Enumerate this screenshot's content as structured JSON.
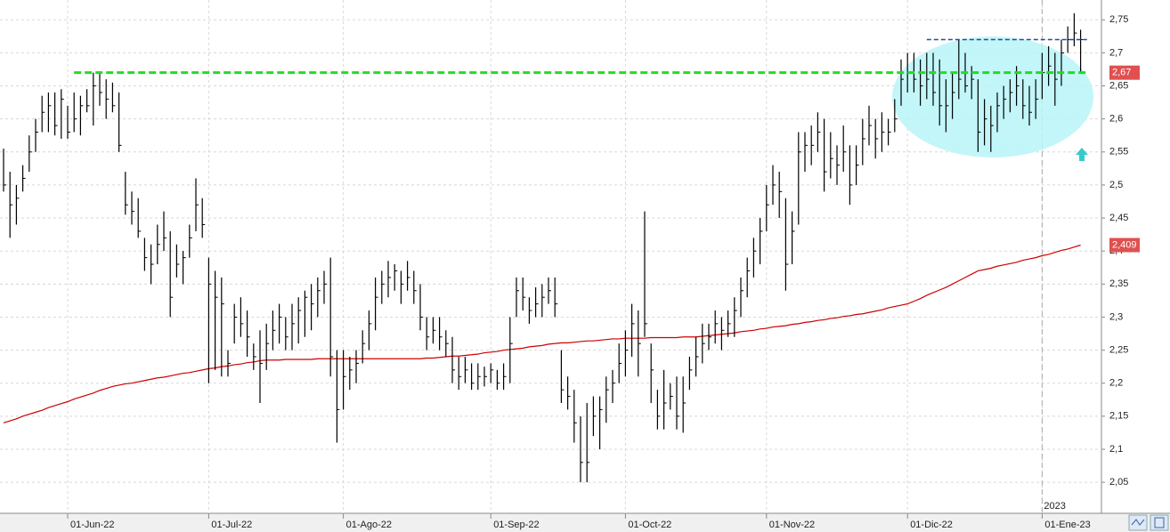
{
  "chart_data": {
    "type": "hlc",
    "bar_color": "#000000",
    "grid": true,
    "ylim": [
      2.003,
      2.78
    ],
    "yticks": [
      {
        "value": 2.05,
        "label": "2,05"
      },
      {
        "value": 2.1,
        "label": "2,1"
      },
      {
        "value": 2.15,
        "label": "2,15"
      },
      {
        "value": 2.2,
        "label": "2,2"
      },
      {
        "value": 2.25,
        "label": "2,25"
      },
      {
        "value": 2.3,
        "label": "2,3"
      },
      {
        "value": 2.35,
        "label": "2,35"
      },
      {
        "value": 2.4,
        "label": "2,4"
      },
      {
        "value": 2.45,
        "label": "2,45"
      },
      {
        "value": 2.5,
        "label": "2,5"
      },
      {
        "value": 2.55,
        "label": "2,55"
      },
      {
        "value": 2.6,
        "label": "2,6"
      },
      {
        "value": 2.65,
        "label": "2,65"
      },
      {
        "value": 2.7,
        "label": "2,7"
      },
      {
        "value": 2.75,
        "label": "2,75"
      }
    ],
    "categories": [
      null,
      null,
      null,
      null,
      null,
      null,
      null,
      null,
      null,
      null,
      "01-Jun-22",
      null,
      null,
      null,
      null,
      null,
      null,
      null,
      null,
      null,
      null,
      null,
      null,
      null,
      null,
      null,
      null,
      null,
      null,
      null,
      null,
      null,
      "01-Jul-22",
      null,
      null,
      null,
      null,
      null,
      null,
      null,
      null,
      null,
      null,
      null,
      null,
      null,
      null,
      null,
      null,
      null,
      null,
      null,
      null,
      "01-Ago-22",
      null,
      null,
      null,
      null,
      null,
      null,
      null,
      null,
      null,
      null,
      null,
      null,
      null,
      null,
      null,
      null,
      null,
      null,
      null,
      null,
      null,
      null,
      "01-Sep-22",
      null,
      null,
      null,
      null,
      null,
      null,
      null,
      null,
      null,
      null,
      null,
      null,
      null,
      null,
      null,
      null,
      null,
      null,
      null,
      null,
      "01-Oct-22",
      null,
      null,
      null,
      null,
      null,
      null,
      null,
      null,
      null,
      null,
      null,
      null,
      null,
      null,
      null,
      null,
      null,
      null,
      null,
      null,
      null,
      "01-Nov-22",
      null,
      null,
      null,
      null,
      null,
      null,
      null,
      null,
      null,
      null,
      null,
      null,
      null,
      null,
      null,
      null,
      null,
      null,
      null,
      null,
      null,
      "01-Dic-22",
      null,
      null,
      null,
      null,
      null,
      null,
      null,
      null,
      null,
      null,
      null,
      null,
      null,
      null,
      null,
      null,
      null,
      null,
      null,
      null,
      "01-Ene-23",
      null,
      null,
      null,
      null,
      null,
      null
    ],
    "high": [
      2.555,
      2.52,
      2.5,
      2.53,
      2.575,
      2.6,
      2.635,
      2.64,
      2.64,
      2.645,
      2.62,
      2.64,
      2.635,
      2.645,
      2.67,
      2.67,
      2.66,
      2.655,
      2.64,
      2.52,
      2.49,
      2.48,
      2.42,
      2.41,
      2.44,
      2.46,
      2.43,
      2.41,
      2.4,
      2.44,
      2.51,
      2.48,
      2.39,
      2.37,
      2.36,
      2.25,
      2.32,
      2.33,
      2.31,
      2.26,
      2.28,
      2.29,
      2.31,
      2.32,
      2.3,
      2.32,
      2.33,
      2.34,
      2.35,
      2.36,
      2.37,
      2.39,
      2.25,
      2.25,
      2.24,
      2.25,
      2.28,
      2.31,
      2.36,
      2.37,
      2.385,
      2.38,
      2.37,
      2.385,
      2.37,
      2.35,
      2.3,
      2.3,
      2.3,
      2.28,
      2.27,
      2.24,
      2.24,
      2.23,
      2.23,
      2.225,
      2.23,
      2.22,
      2.23,
      2.3,
      2.36,
      2.36,
      2.33,
      2.345,
      2.35,
      2.36,
      2.36,
      2.25,
      2.21,
      2.19,
      2.15,
      2.17,
      2.18,
      2.18,
      2.21,
      2.22,
      2.26,
      2.28,
      2.32,
      2.31,
      2.46,
      2.26,
      2.19,
      2.22,
      2.2,
      2.21,
      2.21,
      2.24,
      2.27,
      2.29,
      2.29,
      2.31,
      2.3,
      2.31,
      2.33,
      2.36,
      2.39,
      2.42,
      2.45,
      2.5,
      2.53,
      2.52,
      2.48,
      2.46,
      2.58,
      2.58,
      2.59,
      2.61,
      2.6,
      2.58,
      2.56,
      2.59,
      2.56,
      2.56,
      2.6,
      2.62,
      2.6,
      2.61,
      2.6,
      2.63,
      2.69,
      2.7,
      2.7,
      2.69,
      2.7,
      2.7,
      2.69,
      2.66,
      2.67,
      2.72,
      2.7,
      2.68,
      2.66,
      2.63,
      2.62,
      2.64,
      2.65,
      2.66,
      2.68,
      2.66,
      2.65,
      2.66,
      2.7,
      2.71,
      2.7,
      2.72,
      2.74,
      2.76,
      2.735
    ],
    "low": [
      2.49,
      2.42,
      2.44,
      2.49,
      2.52,
      2.55,
      2.58,
      2.58,
      2.575,
      2.57,
      2.57,
      2.58,
      2.575,
      2.61,
      2.59,
      2.62,
      2.6,
      2.61,
      2.55,
      2.455,
      2.44,
      2.42,
      2.37,
      2.35,
      2.38,
      2.4,
      2.3,
      2.36,
      2.35,
      2.39,
      2.43,
      2.42,
      2.2,
      2.22,
      2.21,
      2.21,
      2.26,
      2.27,
      2.24,
      2.22,
      2.17,
      2.22,
      2.25,
      2.26,
      2.25,
      2.25,
      2.26,
      2.27,
      2.28,
      2.3,
      2.32,
      2.21,
      2.11,
      2.16,
      2.19,
      2.2,
      2.23,
      2.25,
      2.28,
      2.32,
      2.33,
      2.34,
      2.32,
      2.34,
      2.32,
      2.28,
      2.25,
      2.26,
      2.25,
      2.24,
      2.2,
      2.19,
      2.2,
      2.19,
      2.19,
      2.195,
      2.2,
      2.19,
      2.19,
      2.2,
      2.3,
      2.31,
      2.29,
      2.3,
      2.3,
      2.32,
      2.3,
      2.17,
      2.16,
      2.11,
      2.05,
      2.05,
      2.12,
      2.1,
      2.14,
      2.17,
      2.2,
      2.21,
      2.24,
      2.21,
      2.27,
      2.17,
      2.13,
      2.13,
      2.16,
      2.13,
      2.125,
      2.19,
      2.21,
      2.23,
      2.25,
      2.26,
      2.25,
      2.27,
      2.27,
      2.3,
      2.33,
      2.36,
      2.38,
      2.43,
      2.47,
      2.45,
      2.34,
      2.38,
      2.44,
      2.52,
      2.53,
      2.55,
      2.49,
      2.51,
      2.5,
      2.52,
      2.47,
      2.5,
      2.53,
      2.56,
      2.54,
      2.55,
      2.56,
      2.58,
      2.62,
      2.64,
      2.64,
      2.62,
      2.63,
      2.62,
      2.59,
      2.58,
      2.6,
      2.63,
      2.64,
      2.63,
      2.55,
      2.56,
      2.55,
      2.58,
      2.6,
      2.61,
      2.62,
      2.6,
      2.59,
      2.6,
      2.63,
      2.65,
      2.62,
      2.65,
      2.7,
      2.71,
      2.67
    ],
    "close": [
      2.5,
      2.47,
      2.48,
      2.51,
      2.55,
      2.58,
      2.61,
      2.62,
      2.59,
      2.63,
      2.58,
      2.6,
      2.62,
      2.62,
      2.65,
      2.64,
      2.63,
      2.62,
      2.56,
      2.47,
      2.46,
      2.43,
      2.39,
      2.38,
      2.41,
      2.42,
      2.33,
      2.38,
      2.39,
      2.42,
      2.47,
      2.44,
      2.35,
      2.33,
      2.32,
      2.23,
      2.3,
      2.29,
      2.27,
      2.24,
      2.23,
      2.26,
      2.28,
      2.3,
      2.27,
      2.29,
      2.31,
      2.33,
      2.32,
      2.34,
      2.35,
      2.24,
      2.16,
      2.21,
      2.22,
      2.23,
      2.26,
      2.29,
      2.33,
      2.35,
      2.36,
      2.37,
      2.35,
      2.36,
      2.34,
      2.3,
      2.27,
      2.28,
      2.27,
      2.26,
      2.22,
      2.21,
      2.22,
      2.2,
      2.21,
      2.21,
      2.22,
      2.2,
      2.21,
      2.26,
      2.34,
      2.33,
      2.31,
      2.32,
      2.33,
      2.34,
      2.32,
      2.19,
      2.18,
      2.14,
      2.08,
      2.08,
      2.15,
      2.16,
      2.19,
      2.2,
      2.23,
      2.25,
      2.29,
      2.26,
      2.29,
      2.22,
      2.15,
      2.17,
      2.18,
      2.15,
      2.17,
      2.22,
      2.24,
      2.26,
      2.27,
      2.29,
      2.28,
      2.29,
      2.31,
      2.34,
      2.37,
      2.4,
      2.43,
      2.47,
      2.5,
      2.49,
      2.38,
      2.43,
      2.55,
      2.56,
      2.56,
      2.58,
      2.52,
      2.54,
      2.53,
      2.55,
      2.5,
      2.53,
      2.57,
      2.59,
      2.57,
      2.58,
      2.58,
      2.6,
      2.66,
      2.67,
      2.66,
      2.65,
      2.66,
      2.64,
      2.62,
      2.62,
      2.64,
      2.66,
      2.65,
      2.66,
      2.58,
      2.6,
      2.59,
      2.62,
      2.63,
      2.64,
      2.65,
      2.62,
      2.61,
      2.63,
      2.67,
      2.68,
      2.66,
      2.7,
      2.72,
      2.73,
      2.72
    ],
    "moving_average": {
      "color": "#cc0000",
      "values": [
        2.14,
        2.143,
        2.146,
        2.15,
        2.153,
        2.156,
        2.159,
        2.163,
        2.166,
        2.169,
        2.172,
        2.176,
        2.179,
        2.182,
        2.185,
        2.189,
        2.192,
        2.195,
        2.197,
        2.199,
        2.2,
        2.202,
        2.204,
        2.206,
        2.208,
        2.209,
        2.211,
        2.213,
        2.215,
        2.216,
        2.218,
        2.22,
        2.222,
        2.223,
        2.225,
        2.226,
        2.228,
        2.229,
        2.231,
        2.232,
        2.234,
        2.235,
        2.235,
        2.235,
        2.236,
        2.236,
        2.236,
        2.236,
        2.236,
        2.237,
        2.237,
        2.237,
        2.237,
        2.237,
        2.237,
        2.237,
        2.237,
        2.237,
        2.237,
        2.237,
        2.237,
        2.237,
        2.237,
        2.237,
        2.237,
        2.237,
        2.238,
        2.238,
        2.239,
        2.24,
        2.241,
        2.241,
        2.242,
        2.243,
        2.244,
        2.246,
        2.247,
        2.248,
        2.25,
        2.251,
        2.252,
        2.253,
        2.255,
        2.256,
        2.257,
        2.259,
        2.26,
        2.261,
        2.261,
        2.262,
        2.263,
        2.264,
        2.264,
        2.265,
        2.266,
        2.267,
        2.267,
        2.268,
        2.268,
        2.268,
        2.268,
        2.269,
        2.269,
        2.269,
        2.269,
        2.269,
        2.27,
        2.27,
        2.27,
        2.271,
        2.272,
        2.273,
        2.274,
        2.275,
        2.276,
        2.278,
        2.279,
        2.28,
        2.282,
        2.283,
        2.285,
        2.286,
        2.287,
        2.289,
        2.29,
        2.292,
        2.293,
        2.295,
        2.296,
        2.298,
        2.299,
        2.301,
        2.302,
        2.304,
        2.305,
        2.307,
        2.309,
        2.311,
        2.314,
        2.316,
        2.318,
        2.32,
        2.324,
        2.328,
        2.333,
        2.337,
        2.341,
        2.345,
        2.35,
        2.355,
        2.36,
        2.365,
        2.37,
        2.372,
        2.374,
        2.377,
        2.379,
        2.381,
        2.383,
        2.386,
        2.388,
        2.39,
        2.393,
        2.395,
        2.398,
        2.401,
        2.403,
        2.406,
        2.409
      ]
    },
    "levels": [
      {
        "value": 2.67,
        "color": "#22dd22"
      },
      {
        "value": 2.72,
        "color": "#1f4e9a"
      }
    ],
    "price_tags": [
      {
        "value": 2.67,
        "label": "2,67"
      },
      {
        "value": 2.409,
        "label": "2,409"
      }
    ],
    "year_marker": "2023"
  }
}
